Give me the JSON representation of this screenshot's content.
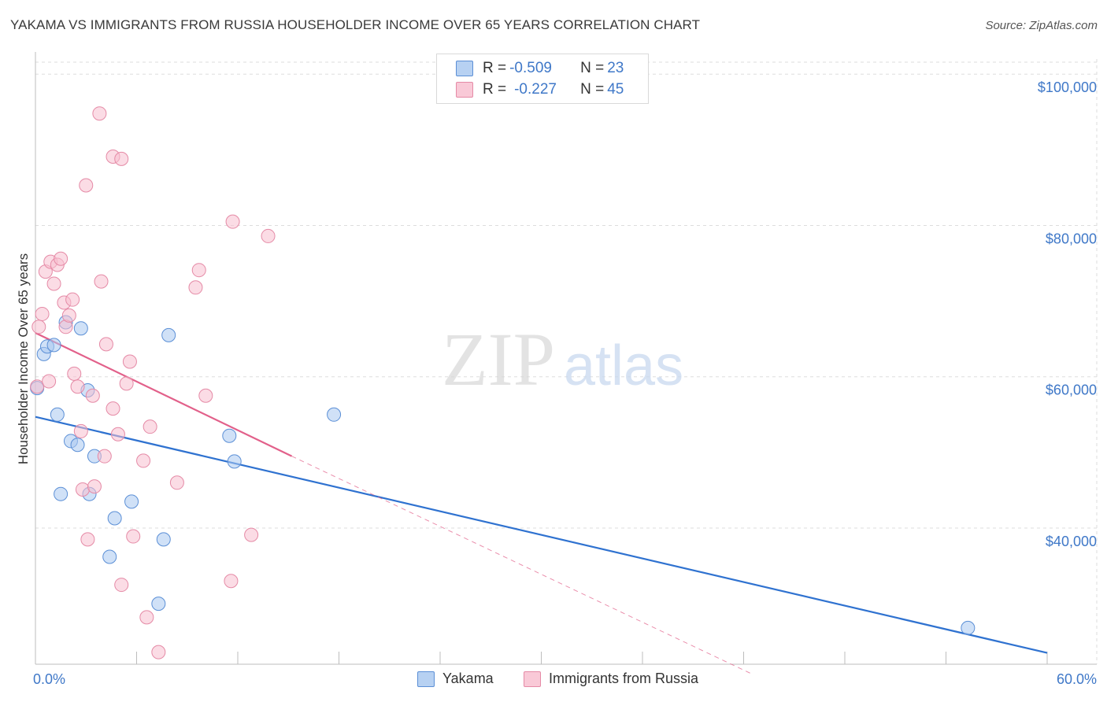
{
  "header": {
    "title": "YAKAMA VS IMMIGRANTS FROM RUSSIA HOUSEHOLDER INCOME OVER 65 YEARS CORRELATION CHART",
    "source": "Source: ZipAtlas.com"
  },
  "legend": {
    "rows": [
      {
        "r_label": "R = ",
        "r_value": "-0.509",
        "n_label": "N = ",
        "n_value": "23"
      },
      {
        "r_label": "R = ",
        "r_value": "-0.227",
        "n_label": "N = ",
        "n_value": "45"
      }
    ]
  },
  "watermark": {
    "zip": "ZIP",
    "atlas": "atlas"
  },
  "colors": {
    "yakama_fill": "#a9c8f0",
    "yakama_stroke": "#5b8fd6",
    "yakama_line": "#2f72d0",
    "russia_fill": "#f7bfd0",
    "russia_stroke": "#e58aa6",
    "russia_line": "#e2608a",
    "axis_text": "#3f78c8",
    "grid": "#dddddd"
  },
  "chart_data": {
    "type": "scatter",
    "title": "YAKAMA VS IMMIGRANTS FROM RUSSIA HOUSEHOLDER INCOME OVER 65 YEARS CORRELATION CHART",
    "xlabel": "",
    "ylabel": "Householder Income Over 65 years",
    "xlim": [
      0,
      60
    ],
    "ylim": [
      22000,
      102000
    ],
    "x_tick_labels": [
      "0.0%",
      "60.0%"
    ],
    "y_ticks": [
      {
        "value": 40000,
        "label": "$40,000"
      },
      {
        "value": 60000,
        "label": "$60,000"
      },
      {
        "value": 80000,
        "label": "$80,000"
      },
      {
        "value": 100000,
        "label": "$100,000"
      }
    ],
    "grid": true,
    "series": [
      {
        "name": "Yakama",
        "R": -0.509,
        "N": 23,
        "points": [
          [
            0.1,
            58500
          ],
          [
            0.5,
            63000
          ],
          [
            0.7,
            64000
          ],
          [
            1.1,
            64200
          ],
          [
            1.3,
            55000
          ],
          [
            1.5,
            44500
          ],
          [
            1.8,
            67200
          ],
          [
            2.1,
            51500
          ],
          [
            2.5,
            51000
          ],
          [
            2.7,
            66400
          ],
          [
            3.1,
            58200
          ],
          [
            3.2,
            44500
          ],
          [
            3.5,
            49500
          ],
          [
            4.4,
            36200
          ],
          [
            4.7,
            41300
          ],
          [
            5.7,
            43500
          ],
          [
            7.3,
            30000
          ],
          [
            7.6,
            38500
          ],
          [
            7.9,
            65500
          ],
          [
            11.5,
            52200
          ],
          [
            11.8,
            48800
          ],
          [
            17.7,
            55000
          ],
          [
            55.3,
            26800
          ]
        ],
        "trend": {
          "x": [
            0,
            60
          ],
          "y": [
            54700,
            23500
          ],
          "style": "solid"
        }
      },
      {
        "name": "Immigrants from Russia",
        "R": -0.227,
        "N": 45,
        "points": [
          [
            0.1,
            58700
          ],
          [
            0.2,
            66600
          ],
          [
            0.4,
            68300
          ],
          [
            0.6,
            73900
          ],
          [
            0.8,
            59400
          ],
          [
            0.9,
            75200
          ],
          [
            1.1,
            72300
          ],
          [
            1.3,
            74800
          ],
          [
            1.5,
            75600
          ],
          [
            1.7,
            69800
          ],
          [
            1.8,
            66600
          ],
          [
            2.0,
            68100
          ],
          [
            2.2,
            70200
          ],
          [
            2.3,
            60400
          ],
          [
            2.5,
            58700
          ],
          [
            2.7,
            52800
          ],
          [
            2.8,
            45100
          ],
          [
            3.0,
            85300
          ],
          [
            3.1,
            38500
          ],
          [
            3.4,
            57500
          ],
          [
            3.5,
            45500
          ],
          [
            3.8,
            94800
          ],
          [
            3.9,
            72600
          ],
          [
            4.1,
            49500
          ],
          [
            4.2,
            64300
          ],
          [
            4.6,
            55800
          ],
          [
            4.6,
            89100
          ],
          [
            4.9,
            52400
          ],
          [
            5.1,
            88800
          ],
          [
            5.1,
            32500
          ],
          [
            5.4,
            59100
          ],
          [
            5.6,
            62000
          ],
          [
            5.8,
            38900
          ],
          [
            6.4,
            48900
          ],
          [
            6.6,
            28200
          ],
          [
            6.8,
            53400
          ],
          [
            7.3,
            23600
          ],
          [
            8.4,
            46000
          ],
          [
            9.5,
            71800
          ],
          [
            9.7,
            74100
          ],
          [
            10.1,
            57500
          ],
          [
            11.6,
            33000
          ],
          [
            11.7,
            80500
          ],
          [
            12.8,
            39100
          ],
          [
            13.8,
            78600
          ]
        ],
        "trend": {
          "x": [
            0,
            15.2
          ],
          "y": [
            65800,
            49500
          ],
          "style": "solid"
        },
        "trend_extension": {
          "x": [
            15.2,
            42.5
          ],
          "y": [
            49500,
            20700
          ],
          "style": "dashed"
        }
      }
    ]
  },
  "bottom_legend": {
    "items": [
      {
        "label": "Yakama"
      },
      {
        "label": "Immigrants from Russia"
      }
    ]
  }
}
